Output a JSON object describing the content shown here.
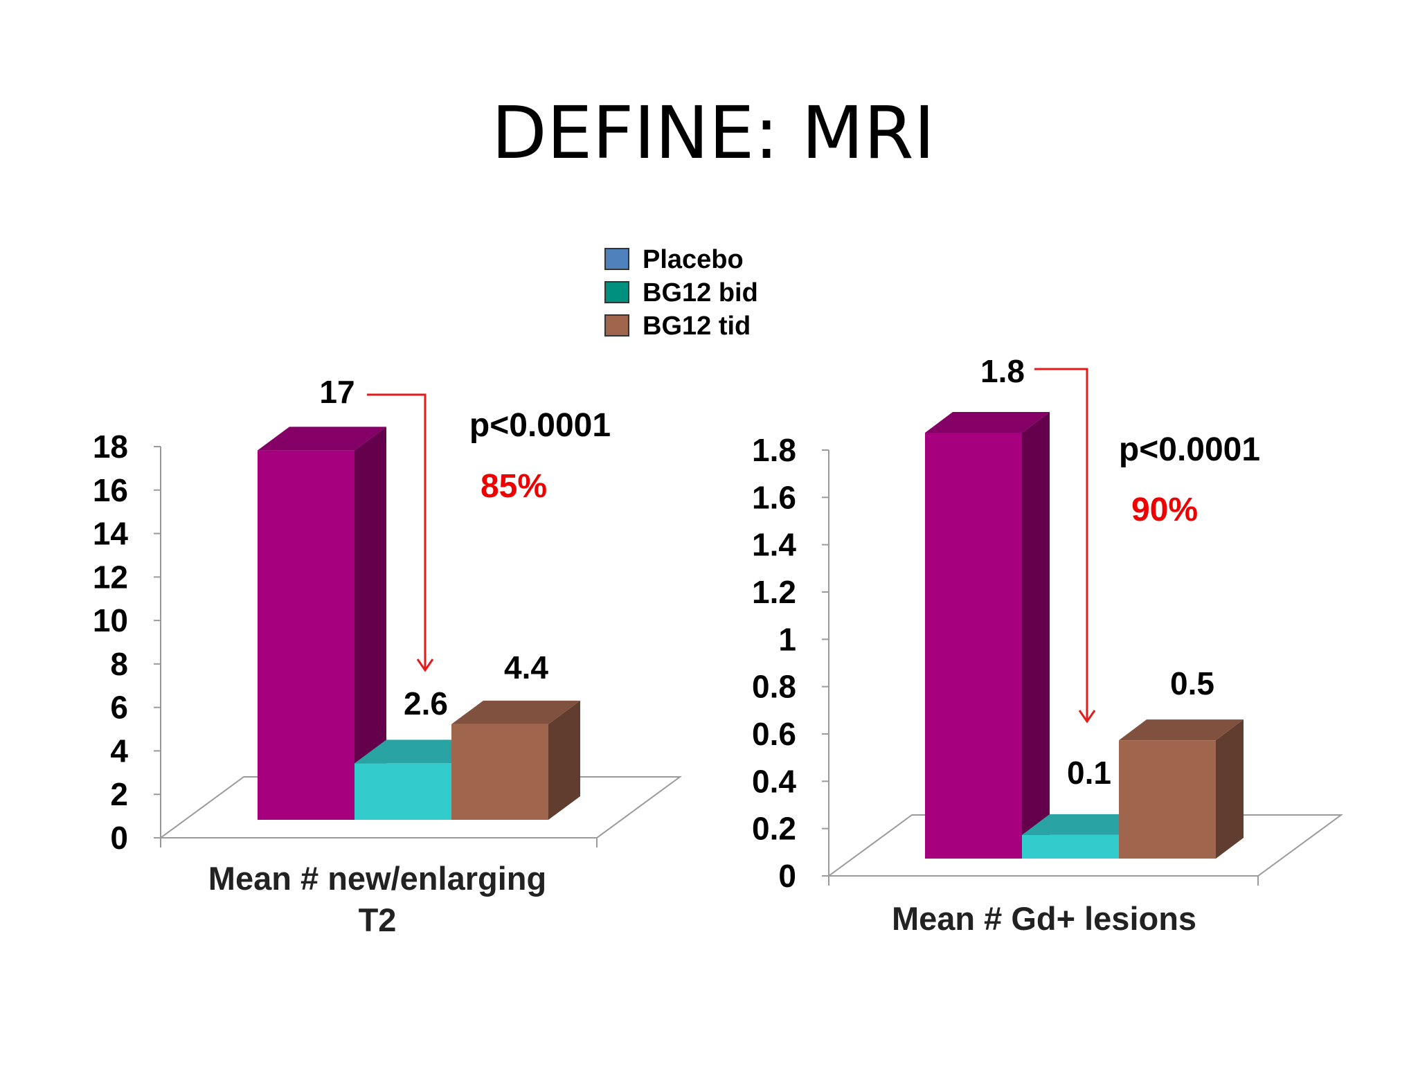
{
  "slide": {
    "title": "DEFINE: MRI"
  },
  "legend": {
    "items": [
      {
        "label": "Placebo",
        "color": "#4f81bd"
      },
      {
        "label": "BG12 bid",
        "color": "#00907f"
      },
      {
        "label": "BG12 tid",
        "color": "#a0654d"
      }
    ]
  },
  "chart_data": [
    {
      "type": "bar",
      "xlabel_lines": [
        "Mean # new/enlarging",
        "T2"
      ],
      "ylabel": "",
      "ylim": [
        0,
        18
      ],
      "yticks": [
        "0",
        "2",
        "4",
        "6",
        "8",
        "10",
        "12",
        "14",
        "16",
        "18"
      ],
      "series": [
        {
          "name": "Placebo",
          "value": 17,
          "label": "17",
          "color": "#a6007f"
        },
        {
          "name": "BG12 bid",
          "value": 2.6,
          "label": "2.6",
          "color": "#33cccc"
        },
        {
          "name": "BG12 tid",
          "value": 4.4,
          "label": "4.4",
          "color": "#a0654d"
        }
      ],
      "annotation": {
        "p_value": "p<0.0001",
        "reduction": "85%"
      },
      "grid": false
    },
    {
      "type": "bar",
      "xlabel_lines": [
        "Mean # Gd+ lesions"
      ],
      "ylabel": "",
      "ylim": [
        0,
        1.8
      ],
      "yticks": [
        "0",
        "0.2",
        "0.4",
        "0.6",
        "0.8",
        "1",
        "1.2",
        "1.4",
        "1.6",
        "1.8"
      ],
      "series": [
        {
          "name": "Placebo",
          "value": 1.8,
          "label": "1.8",
          "color": "#a6007f"
        },
        {
          "name": "BG12 bid",
          "value": 0.1,
          "label": "0.1",
          "color": "#33cccc"
        },
        {
          "name": "BG12 tid",
          "value": 0.5,
          "label": "0.5",
          "color": "#a0654d"
        }
      ],
      "annotation": {
        "p_value": "p<0.0001",
        "reduction": "90%"
      },
      "grid": false
    }
  ]
}
